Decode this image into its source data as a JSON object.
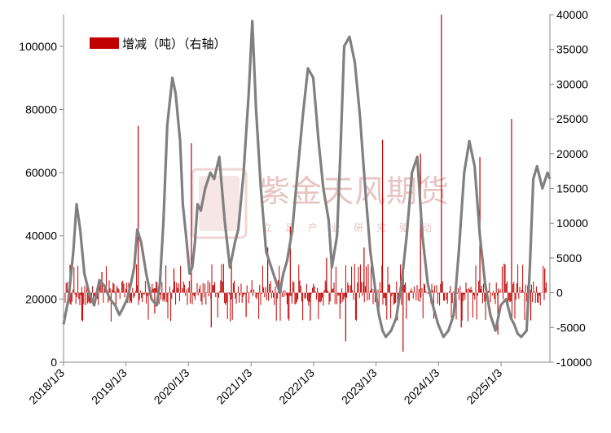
{
  "chart_data": {
    "type": "line",
    "title": "",
    "x_tick_labels": [
      "2018/1/3",
      "2019/1/3",
      "2020/1/3",
      "2021/1/3",
      "2022/1/3",
      "2023/1/3",
      "2024/1/3",
      "2025/1/3"
    ],
    "x_range": [
      "2018/1/3",
      "2025/10/15"
    ],
    "y_left": {
      "range": [
        0,
        110000
      ],
      "ticks": [
        0,
        20000,
        40000,
        60000,
        80000,
        100000
      ],
      "labels": [
        "0",
        "20000",
        "40000",
        "60000",
        "80000",
        "100000"
      ]
    },
    "y_right": {
      "range": [
        -10000,
        40000
      ],
      "ticks": [
        -10000,
        -5000,
        0,
        5000,
        10000,
        15000,
        20000,
        25000,
        30000,
        35000,
        40000
      ],
      "labels": [
        "-10000",
        "-5000",
        "0",
        "5000",
        "10000",
        "15000",
        "20000",
        "25000",
        "30000",
        "35000",
        "40000"
      ]
    },
    "grid": false,
    "legend_position": "top-left",
    "series": [
      {
        "name": "",
        "axis": "left",
        "style": "line",
        "color": "#808080",
        "x": [
          "2018/1/3",
          "2018/2/1",
          "2018/3/1",
          "2018/3/20",
          "2018/4/10",
          "2018/5/5",
          "2018/6/1",
          "2018/7/1",
          "2018/8/1",
          "2018/9/1",
          "2018/10/1",
          "2018/11/1",
          "2018/11/25",
          "2018/12/15",
          "2019/1/10",
          "2019/2/1",
          "2019/2/20",
          "2019/3/10",
          "2019/4/1",
          "2019/5/1",
          "2019/6/1",
          "2019/7/1",
          "2019/7/20",
          "2019/8/10",
          "2019/9/1",
          "2019/10/1",
          "2019/10/20",
          "2019/11/15",
          "2019/12/1",
          "2019/12/20",
          "2020/1/10",
          "2020/1/25",
          "2020/2/10",
          "2020/2/25",
          "2020/3/15",
          "2020/4/10",
          "2020/5/10",
          "2020/6/1",
          "2020/7/1",
          "2020/8/1",
          "2020/9/1",
          "2020/10/1",
          "2020/10/20",
          "2020/11/20",
          "2020/12/20",
          "2021/1/10",
          "2021/2/1",
          "2021/3/1",
          "2021/4/1",
          "2021/5/1",
          "2021/6/1",
          "2021/6/20",
          "2021/7/10",
          "2021/8/1",
          "2021/9/1",
          "2021/10/1",
          "2021/11/1",
          "2021/12/1",
          "2022/1/1",
          "2022/2/1",
          "2022/3/1",
          "2022/4/1",
          "2022/4/20",
          "2022/5/20",
          "2022/6/10",
          "2022/7/1",
          "2022/8/1",
          "2022/9/1",
          "2022/10/1",
          "2022/11/1",
          "2022/12/1",
          "2023/1/1",
          "2023/1/20",
          "2023/2/10",
          "2023/3/1",
          "2023/4/1",
          "2023/5/1",
          "2023/6/1",
          "2023/7/1",
          "2023/8/1",
          "2023/9/1",
          "2023/10/1",
          "2023/11/1",
          "2023/12/1",
          "2024/1/1",
          "2024/2/1",
          "2024/3/1",
          "2024/4/1",
          "2024/5/1",
          "2024/6/1",
          "2024/7/1",
          "2024/8/1",
          "2024/9/1",
          "2024/10/1",
          "2024/11/1",
          "2024/12/1",
          "2025/1/1",
          "2025/2/1",
          "2025/3/1",
          "2025/3/20",
          "2025/4/10",
          "2025/5/1",
          "2025/6/1",
          "2025/6/20",
          "2025/7/10",
          "2025/8/1",
          "2025/9/1",
          "2025/10/1",
          "2025/10/15"
        ],
        "values": [
          12000,
          20000,
          35000,
          50000,
          42000,
          28000,
          22000,
          18000,
          26000,
          24000,
          20000,
          18000,
          15000,
          17000,
          20000,
          25000,
          30000,
          42000,
          38000,
          28000,
          20000,
          18000,
          25000,
          45000,
          75000,
          90000,
          85000,
          70000,
          50000,
          40000,
          28000,
          30000,
          38000,
          50000,
          48000,
          55000,
          60000,
          58000,
          65000,
          45000,
          30000,
          38000,
          42000,
          60000,
          85000,
          108000,
          80000,
          55000,
          35000,
          30000,
          25000,
          22000,
          28000,
          32000,
          42000,
          60000,
          78000,
          93000,
          90000,
          70000,
          55000,
          45000,
          30000,
          40000,
          68000,
          100000,
          103000,
          95000,
          78000,
          55000,
          35000,
          22000,
          15000,
          10000,
          8000,
          10000,
          14000,
          25000,
          40000,
          60000,
          65000,
          40000,
          25000,
          18000,
          12000,
          8000,
          10000,
          15000,
          35000,
          60000,
          70000,
          62000,
          40000,
          25000,
          15000,
          10000,
          18000,
          20000,
          14000,
          12000,
          9000,
          8000,
          10000,
          30000,
          58000,
          62000,
          55000,
          60000,
          58000
        ]
      },
      {
        "name": "增减（吨）（右轴）",
        "axis": "right",
        "style": "bar",
        "color": "#c00000",
        "x": [
          "2018/2/10",
          "2018/4/20",
          "2018/8/15",
          "2018/11/5",
          "2019/3/15",
          "2019/6/20",
          "2019/10/10",
          "2020/1/20",
          "2020/5/15",
          "2020/9/10",
          "2020/12/5",
          "2021/4/10",
          "2021/8/20",
          "2021/12/15",
          "2022/3/20",
          "2022/7/10",
          "2022/10/25",
          "2023/2/10",
          "2023/6/10",
          "2023/9/20",
          "2024/1/20",
          "2024/5/15",
          "2024/9/1",
          "2024/12/15",
          "2025/3/5",
          "2025/6/25",
          "2025/9/15"
        ],
        "values": [
          4000,
          -4000,
          3000,
          -2500,
          24000,
          -3000,
          3500,
          21500,
          -5000,
          4500,
          -3500,
          6500,
          9500,
          -4000,
          5000,
          -7000,
          6500,
          22000,
          -8500,
          20000,
          40000,
          -5000,
          19500,
          -6000,
          25000,
          -4000,
          3500
        ]
      }
    ]
  },
  "legend": {
    "label": "增减（吨）（右轴）",
    "swatch_color": "#c00000"
  },
  "watermark": {
    "line1": "紫金天风期货",
    "line2": "立足产业研究驱动",
    "logo_text": "紫金"
  }
}
